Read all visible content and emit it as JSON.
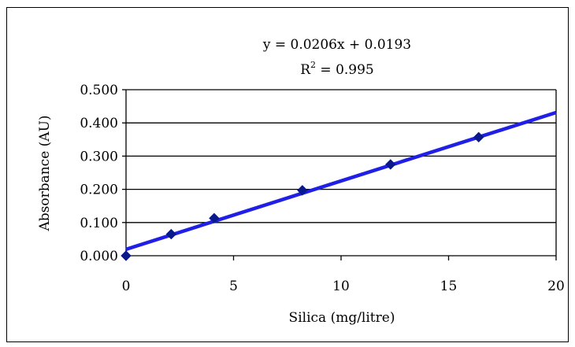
{
  "chart_data": {
    "type": "scatter",
    "title": "",
    "xlabel": "Silica (mg/litre)",
    "ylabel": "Absorbance (AU)",
    "xlim": [
      0,
      20
    ],
    "ylim": [
      0,
      0.5
    ],
    "x_ticks": [
      "0",
      "5",
      "10",
      "15",
      "20"
    ],
    "y_ticks": [
      "0.000",
      "0.100",
      "0.200",
      "0.300",
      "0.400",
      "0.500"
    ],
    "grid": "horizontal",
    "series": [
      {
        "points": [
          {
            "x": 0,
            "y": 0.0
          },
          {
            "x": 2.1,
            "y": 0.065
          },
          {
            "x": 4.1,
            "y": 0.113
          },
          {
            "x": 8.2,
            "y": 0.197
          },
          {
            "x": 12.3,
            "y": 0.275
          },
          {
            "x": 16.4,
            "y": 0.357
          }
        ],
        "color": "#0a1a8c"
      }
    ],
    "trendline": {
      "slope": 0.0206,
      "intercept": 0.0193,
      "color": "#1f1fe6",
      "equation_label": "y = 0.0206x + 0.0193",
      "r2_base": "R",
      "r2_exponent": "2",
      "r2_value": " = 0.995"
    }
  }
}
